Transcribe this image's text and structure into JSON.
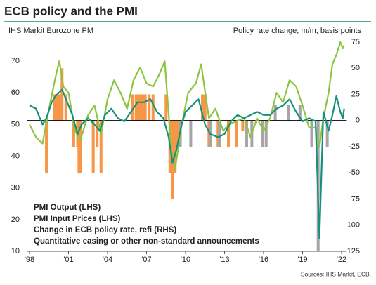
{
  "chart_data": {
    "type": "combo",
    "title": "ECB policy and the PMI",
    "y_label": "IHS Markit  Eurozone PM",
    "y2_label": "Policy rate change, m/m, basis points",
    "source": "Sources: IHS Markit, ECB.",
    "xlim": [
      1998,
      2022.4
    ],
    "xticks": [
      {
        "value": 1998,
        "label": "'98"
      },
      {
        "value": 2001,
        "label": "'01"
      },
      {
        "value": 2004,
        "label": "'04"
      },
      {
        "value": 2007,
        "label": "'07"
      },
      {
        "value": 2010,
        "label": "'10"
      },
      {
        "value": 2013,
        "label": "'13"
      },
      {
        "value": 2016,
        "label": "'16"
      },
      {
        "value": 2019,
        "label": "'19"
      },
      {
        "value": 2022,
        "label": "'22"
      }
    ],
    "ylim": [
      10,
      76
    ],
    "yticks": [
      10,
      20,
      30,
      40,
      50,
      60,
      70
    ],
    "y2lim": [
      -125,
      75
    ],
    "y2ticks": [
      -125,
      -100,
      -75,
      -50,
      -25,
      0,
      25,
      50,
      75
    ],
    "series": [
      {
        "name": "PMI  Output (LHS)",
        "type": "line",
        "color": "#17907c",
        "x": [
          1998.0,
          1998.5,
          1999.0,
          1999.3,
          1999.7,
          2000.0,
          2000.5,
          2000.9,
          2001.3,
          2001.7,
          2002.0,
          2002.5,
          2003.0,
          2003.4,
          2003.8,
          2004.3,
          2004.8,
          2005.3,
          2005.8,
          2006.3,
          2006.8,
          2007.3,
          2007.8,
          2008.3,
          2008.7,
          2009.0,
          2009.3,
          2009.7,
          2010.0,
          2010.5,
          2011.0,
          2011.5,
          2011.9,
          2012.5,
          2013.0,
          2013.5,
          2014.0,
          2014.5,
          2015.0,
          2015.5,
          2016.0,
          2016.5,
          2017.0,
          2017.5,
          2018.0,
          2018.5,
          2019.0,
          2019.5,
          2020.0,
          2020.3,
          2020.6,
          2021.0,
          2021.3,
          2021.6,
          2021.9,
          2022.1,
          2022.2
        ],
        "values": [
          56,
          55,
          50,
          52,
          57,
          59,
          61,
          57,
          53,
          47,
          50,
          52,
          50,
          48,
          53,
          55,
          52,
          51,
          54,
          57,
          57,
          58,
          54,
          52,
          46,
          38,
          42,
          50,
          54,
          56,
          58,
          50,
          47,
          46,
          47,
          51,
          53,
          52,
          53,
          54,
          53,
          53,
          55,
          56,
          58,
          54,
          51,
          52,
          51,
          14,
          54,
          48,
          53,
          59,
          54,
          52,
          55
        ]
      },
      {
        "name": "PMI Input Prices (LHS)",
        "type": "line",
        "color": "#8cc540",
        "x": [
          1998.0,
          1998.5,
          1999.0,
          1999.5,
          2000.0,
          2000.3,
          2000.6,
          2001.0,
          2001.5,
          2001.9,
          2002.5,
          2003.0,
          2003.5,
          2004.0,
          2004.5,
          2005.0,
          2005.5,
          2006.0,
          2006.5,
          2007.0,
          2007.5,
          2008.0,
          2008.4,
          2008.9,
          2009.2,
          2009.7,
          2010.2,
          2010.8,
          2011.2,
          2011.8,
          2012.3,
          2012.9,
          2013.3,
          2013.9,
          2014.5,
          2015.0,
          2015.5,
          2016.0,
          2016.5,
          2017.0,
          2017.5,
          2018.0,
          2018.5,
          2019.0,
          2019.5,
          2020.0,
          2020.3,
          2020.6,
          2021.0,
          2021.3,
          2021.6,
          2021.9,
          2022.1,
          2022.2
        ],
        "values": [
          50,
          46,
          44,
          55,
          65,
          70,
          62,
          60,
          48,
          45,
          53,
          56,
          47,
          58,
          64,
          60,
          55,
          64,
          68,
          63,
          62,
          66,
          70,
          42,
          36,
          50,
          60,
          63,
          69,
          52,
          55,
          48,
          50,
          51,
          52,
          46,
          52,
          48,
          52,
          60,
          57,
          64,
          62,
          56,
          49,
          49,
          43,
          52,
          60,
          69,
          72,
          76,
          74,
          75
        ]
      },
      {
        "name": "Change in ECB policy rate, refi (RHS)",
        "type": "bar",
        "axis": "y2",
        "color": "#f79646",
        "x": [
          1999.3,
          1999.9,
          2000.1,
          2000.3,
          2000.5,
          2000.8,
          2001.4,
          2001.7,
          2001.8,
          2001.9,
          2002.9,
          2003.2,
          2003.5,
          2005.9,
          2006.2,
          2006.4,
          2006.5,
          2006.7,
          2006.9,
          2007.2,
          2007.5,
          2008.5,
          2008.8,
          2008.9,
          2009.0,
          2009.2,
          2009.3,
          2009.4,
          2011.3,
          2011.5,
          2011.8,
          2011.9,
          2012.5,
          2013.3,
          2013.9,
          2014.4,
          2014.7
        ],
        "values": [
          -50,
          25,
          25,
          25,
          50,
          25,
          -25,
          -25,
          -50,
          -50,
          -50,
          -25,
          -50,
          25,
          25,
          25,
          25,
          25,
          25,
          25,
          25,
          25,
          -50,
          -50,
          -75,
          -50,
          -25,
          -25,
          25,
          25,
          -25,
          -25,
          -25,
          -25,
          -25,
          -10,
          -10
        ]
      },
      {
        "name": "Quantitative easing or other non-standard announcements",
        "type": "bar",
        "axis": "y2",
        "color": "#a6a6a6",
        "x": [
          2009.6,
          2010.4,
          2011.9,
          2012.6,
          2014.7,
          2015.1,
          2015.9,
          2016.2,
          2016.9,
          2017.9,
          2018.8,
          2019.7,
          2020.2,
          2020.9
        ],
        "values": [
          -25,
          -25,
          -25,
          -25,
          -25,
          -25,
          -25,
          -25,
          15,
          15,
          15,
          -25,
          -125,
          -25
        ]
      }
    ]
  }
}
